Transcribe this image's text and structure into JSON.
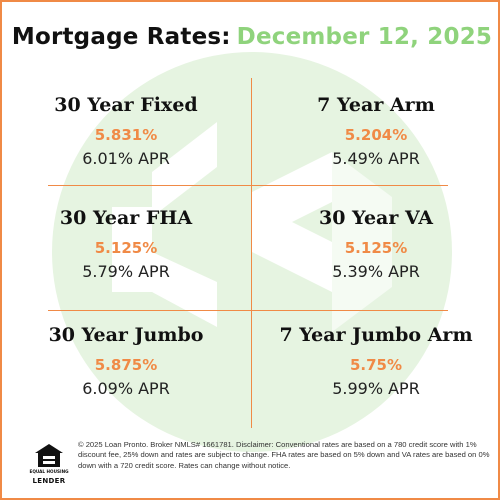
{
  "header": {
    "title": "Mortgage Rates:",
    "date": "December 12, 2025"
  },
  "colors": {
    "accent_orange": "#f08a46",
    "accent_green": "#8fd37c",
    "logo_bg_green": "#e6f4e1"
  },
  "rates": [
    {
      "name": "30 Year Fixed",
      "rate": "5.831%",
      "apr": "6.01% APR"
    },
    {
      "name": "7 Year Arm",
      "rate": "5.204%",
      "apr": "5.49% APR"
    },
    {
      "name": "30 Year FHA",
      "rate": "5.125%",
      "apr": "5.79% APR"
    },
    {
      "name": "30 Year VA",
      "rate": "5.125%",
      "apr": "5.39% APR"
    },
    {
      "name": "30 Year Jumbo",
      "rate": "5.875%",
      "apr": "6.09% APR"
    },
    {
      "name": "7 Year Jumbo Arm",
      "rate": "5.75%",
      "apr": "5.99% APR"
    }
  ],
  "footer": {
    "equal_housing_icon": "equal-housing-lender-icon",
    "equal_housing_label": "EQUAL HOUSING",
    "equal_housing_lender": "LENDER",
    "disclaimer": "© 2025 Loan Pronto. Broker NMLS# 1661781. Disclaimer: Conventional rates are based on a 780 credit score with 1% discount fee, 25% down and rates are subject to change. FHA rates are based on 5% down and VA rates are based on 0% down with a 720 credit score. Rates can change without notice."
  }
}
